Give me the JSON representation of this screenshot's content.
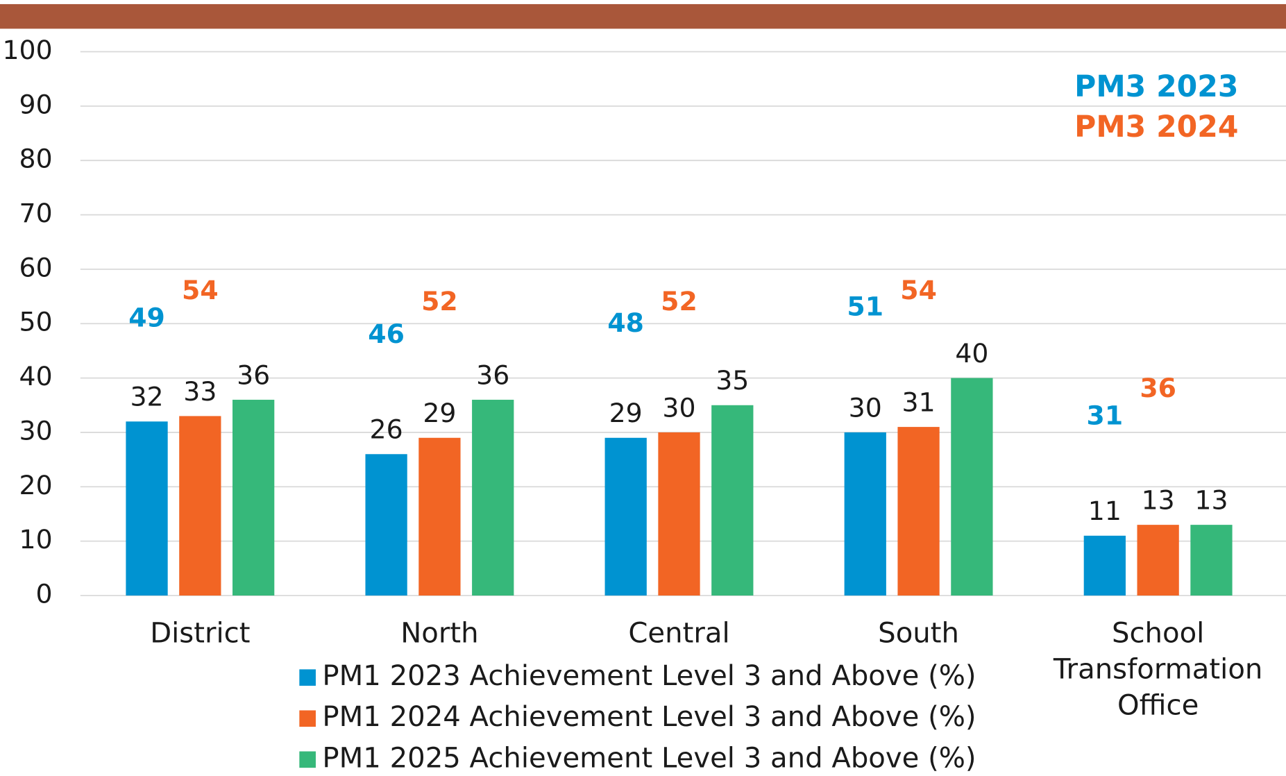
{
  "chart_data": {
    "type": "bar",
    "categories": [
      "District",
      "North",
      "Central",
      "South",
      "School Transformation Office"
    ],
    "series": [
      {
        "name": "PM1 2023 Achievement Level 3 and Above (%)",
        "color": "#0093D1",
        "values": [
          32,
          26,
          29,
          30,
          11
        ]
      },
      {
        "name": "PM1 2024 Achievement Level 3 and Above (%)",
        "color": "#F26524",
        "values": [
          33,
          29,
          30,
          31,
          13
        ]
      },
      {
        "name": "PM1 2025 Achievement Level 3 and Above (%)",
        "color": "#36B87A",
        "values": [
          36,
          36,
          35,
          40,
          13
        ]
      }
    ],
    "annotations": [
      {
        "name": "PM3 2023",
        "color": "#0093D1",
        "values": [
          49,
          46,
          48,
          51,
          31
        ]
      },
      {
        "name": "PM3 2024",
        "color": "#F26524",
        "values": [
          54,
          52,
          52,
          54,
          36
        ]
      }
    ],
    "ylim": [
      0,
      100
    ],
    "yticks": [
      0,
      10,
      20,
      30,
      40,
      50,
      60,
      70,
      80,
      90,
      100
    ],
    "grid": true,
    "legend": "bottom"
  }
}
